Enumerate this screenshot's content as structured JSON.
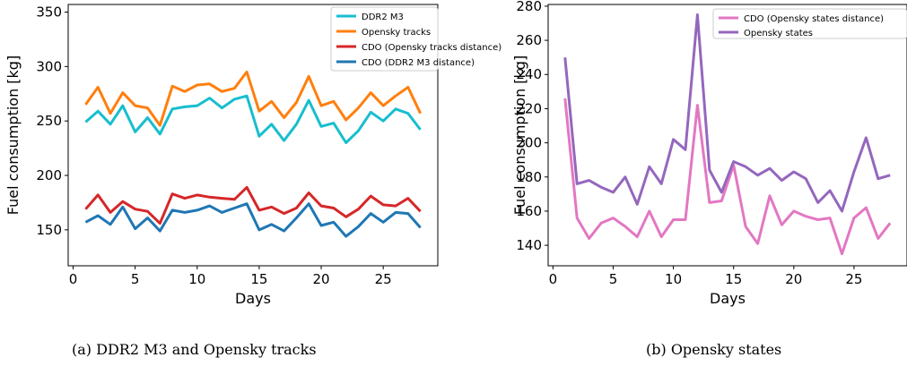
{
  "captions": {
    "a": "(a) DDR2 M3 and Opensky tracks",
    "b": "(b) Opensky states"
  },
  "chart_data": [
    {
      "type": "line",
      "xlabel": "Days",
      "ylabel": "Fuel consumption [kg]",
      "xlim": [
        -0.4,
        29.4
      ],
      "ylim": [
        117,
        357
      ],
      "xticks": [
        0,
        5,
        10,
        15,
        20,
        25
      ],
      "yticks": [
        150,
        200,
        250,
        300,
        350
      ],
      "grid": false,
      "legend": "top-right",
      "x": [
        1,
        2,
        3,
        4,
        5,
        6,
        7,
        8,
        9,
        10,
        11,
        12,
        13,
        14,
        15,
        16,
        17,
        18,
        19,
        20,
        21,
        22,
        23,
        24,
        25,
        26,
        27,
        28
      ],
      "series": [
        {
          "name": "DDR2 M3",
          "color": "#17becf",
          "values": [
            249,
            259,
            247,
            264,
            240,
            253,
            238,
            261,
            263,
            264,
            271,
            262,
            270,
            273,
            236,
            247,
            232,
            247,
            269,
            245,
            248,
            230,
            241,
            258,
            250,
            261,
            257,
            242
          ]
        },
        {
          "name": "Opensky tracks",
          "color": "#ff7f0e",
          "values": [
            265,
            281,
            257,
            276,
            264,
            262,
            246,
            282,
            277,
            283,
            284,
            277,
            280,
            295,
            259,
            268,
            253,
            267,
            291,
            264,
            268,
            251,
            262,
            276,
            264,
            273,
            281,
            257
          ]
        },
        {
          "name": "CDO (Opensky tracks distance)",
          "color": "#d62728",
          "values": [
            169,
            182,
            166,
            176,
            169,
            167,
            156,
            183,
            179,
            182,
            180,
            179,
            178,
            189,
            168,
            171,
            165,
            170,
            184,
            172,
            170,
            162,
            169,
            181,
            173,
            172,
            179,
            167
          ]
        },
        {
          "name": "CDO (DDR2 M3 distance)",
          "color": "#1f77b4",
          "values": [
            157,
            163,
            155,
            171,
            151,
            161,
            149,
            168,
            166,
            168,
            172,
            166,
            170,
            174,
            150,
            155,
            149,
            161,
            174,
            154,
            157,
            144,
            153,
            165,
            157,
            166,
            165,
            152
          ]
        }
      ]
    },
    {
      "type": "line",
      "xlabel": "Days",
      "ylabel": "Fuel consumption [kg]",
      "xlim": [
        -0.4,
        29.4
      ],
      "ylim": [
        128,
        281
      ],
      "xticks": [
        0,
        5,
        10,
        15,
        20,
        25
      ],
      "yticks": [
        140,
        160,
        180,
        200,
        220,
        240,
        260,
        280
      ],
      "grid": false,
      "legend": "top-right",
      "x": [
        1,
        2,
        3,
        4,
        5,
        6,
        7,
        8,
        9,
        10,
        11,
        12,
        13,
        14,
        15,
        16,
        17,
        18,
        19,
        20,
        21,
        22,
        23,
        24,
        25,
        26,
        27,
        28
      ],
      "series": [
        {
          "name": "CDO (Opensky states distance)",
          "color": "#e377c2",
          "values": [
            226,
            156,
            144,
            153,
            156,
            151,
            145,
            160,
            145,
            155,
            155,
            222,
            165,
            166,
            187,
            151,
            141,
            169,
            152,
            160,
            157,
            155,
            156,
            135,
            156,
            162,
            144,
            153
          ]
        },
        {
          "name": "Opensky states",
          "color": "#9467bd",
          "values": [
            250,
            176,
            178,
            174,
            171,
            180,
            164,
            186,
            176,
            202,
            196,
            275,
            184,
            171,
            189,
            186,
            181,
            185,
            178,
            183,
            179,
            165,
            172,
            160,
            183,
            203,
            179,
            181
          ]
        }
      ]
    }
  ]
}
